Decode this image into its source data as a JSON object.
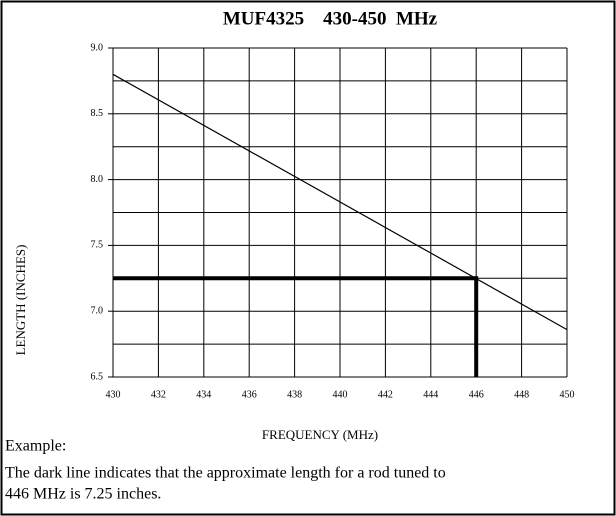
{
  "chart_data": {
    "type": "line",
    "title": "MUF4325    430-450  MHz",
    "xlabel": "FREQUENCY (MHz)",
    "ylabel": "LENGTH (INCHES)",
    "x": [
      430,
      450
    ],
    "series": [
      {
        "name": null,
        "color": "#000000",
        "values": [
          8.8,
          6.86
        ]
      }
    ],
    "highlight": {
      "x": 446,
      "y": 7.25,
      "color": "#000000"
    },
    "xlim": [
      430,
      450
    ],
    "ylim": [
      6.5,
      9
    ],
    "xticks": [
      430,
      432,
      434,
      436,
      438,
      440,
      442,
      444,
      446,
      448,
      450
    ],
    "yticks": [
      6.5,
      {
        "value": 7,
        "label": "7.0"
      },
      7.5,
      {
        "value": 8,
        "label": "8.0"
      },
      8.5,
      {
        "value": 9,
        "label": "9.0"
      }
    ],
    "yminor": [
      6.75,
      7.25,
      7.75,
      8.25,
      8.75
    ],
    "grid": true,
    "notes": [
      "Example:",
      "The dark line indicates that the approximate length for a rod tuned to",
      "446 MHz is 7.25 inches."
    ]
  }
}
